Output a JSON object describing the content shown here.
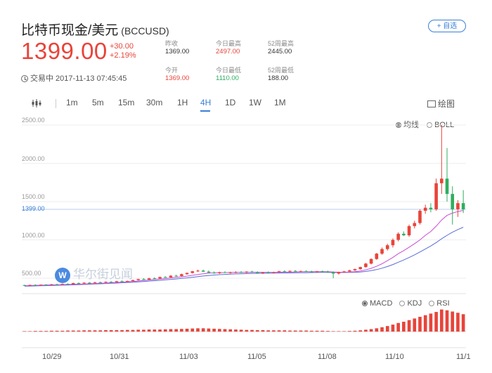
{
  "header": {
    "title": "比特币现金/美元",
    "symbol": "(BCCUSD)",
    "fav_label": "+ 自选",
    "price": "1399.00",
    "change": "+30.00",
    "change_pct": "+2.19%",
    "trade_status": "交易中 2017-11-13 07:45:45"
  },
  "stats": {
    "prev_close_label": "昨收",
    "prev_close": "1369.00",
    "high_label": "今日最高",
    "high": "2497.00",
    "w52_high_label": "52周最高",
    "w52_high": "2445.00",
    "open_label": "今开",
    "open": "1369.00",
    "low_label": "今日最低",
    "low": "1110.00",
    "w52_low_label": "52周最低",
    "w52_low": "188.00"
  },
  "tabs": [
    "1m",
    "5m",
    "15m",
    "30m",
    "1H",
    "4H",
    "1D",
    "1W",
    "1M"
  ],
  "active_tab": "4H",
  "draw_label": "绘图",
  "legend_main": {
    "ma": "均线",
    "boll": "BOLL"
  },
  "legend_sub": {
    "macd": "MACD",
    "kdj": "KDJ",
    "rsi": "RSI"
  },
  "watermark": "华尔街见闻",
  "colors": {
    "up": "#e8443a",
    "down": "#2fae5e",
    "accent": "#3b7fd6",
    "ma1": "#c94bd6",
    "ma2": "#5a6bd8"
  },
  "chart_data": {
    "type": "candlestick",
    "y_ticks": [
      "2500.00",
      "2000.00",
      "1500.00",
      "1000.00",
      "500.00"
    ],
    "last_price_label": "1399.00",
    "x_ticks": [
      "10/29",
      "10/31",
      "11/03",
      "11/05",
      "11/08",
      "11/10",
      "11/1"
    ],
    "ylim": [
      330,
      2700
    ],
    "candles": [
      [
        410,
        415,
        400,
        408
      ],
      [
        408,
        416,
        402,
        412
      ],
      [
        412,
        420,
        405,
        409
      ],
      [
        409,
        418,
        401,
        415
      ],
      [
        415,
        422,
        408,
        413
      ],
      [
        413,
        425,
        409,
        420
      ],
      [
        420,
        428,
        412,
        416
      ],
      [
        416,
        430,
        410,
        425
      ],
      [
        425,
        432,
        418,
        422
      ],
      [
        422,
        440,
        418,
        436
      ],
      [
        436,
        445,
        428,
        432
      ],
      [
        432,
        446,
        425,
        441
      ],
      [
        441,
        450,
        436,
        438
      ],
      [
        438,
        452,
        430,
        447
      ],
      [
        447,
        455,
        440,
        443
      ],
      [
        443,
        458,
        438,
        452
      ],
      [
        452,
        460,
        445,
        448
      ],
      [
        448,
        465,
        442,
        460
      ],
      [
        460,
        470,
        452,
        456
      ],
      [
        456,
        468,
        450,
        463
      ],
      [
        463,
        480,
        458,
        475
      ],
      [
        475,
        492,
        470,
        488
      ],
      [
        488,
        500,
        478,
        482
      ],
      [
        482,
        505,
        476,
        498
      ],
      [
        498,
        512,
        490,
        495
      ],
      [
        495,
        520,
        490,
        515
      ],
      [
        515,
        525,
        505,
        510
      ],
      [
        510,
        540,
        505,
        532
      ],
      [
        532,
        545,
        520,
        528
      ],
      [
        528,
        560,
        522,
        552
      ],
      [
        552,
        575,
        545,
        568
      ],
      [
        568,
        595,
        560,
        590
      ],
      [
        590,
        610,
        580,
        598
      ],
      [
        598,
        612,
        580,
        585
      ],
      [
        585,
        600,
        565,
        572
      ],
      [
        572,
        588,
        558,
        565
      ],
      [
        565,
        585,
        555,
        578
      ],
      [
        578,
        590,
        565,
        570
      ],
      [
        570,
        585,
        560,
        576
      ],
      [
        576,
        590,
        566,
        580
      ],
      [
        580,
        592,
        570,
        574
      ],
      [
        574,
        590,
        566,
        585
      ],
      [
        585,
        596,
        572,
        578
      ],
      [
        578,
        590,
        562,
        566
      ],
      [
        566,
        582,
        555,
        575
      ],
      [
        575,
        588,
        565,
        570
      ],
      [
        570,
        585,
        560,
        578
      ],
      [
        578,
        595,
        572,
        590
      ],
      [
        590,
        602,
        580,
        585
      ],
      [
        585,
        600,
        575,
        595
      ],
      [
        595,
        605,
        582,
        588
      ],
      [
        588,
        600,
        578,
        592
      ],
      [
        592,
        604,
        584,
        587
      ],
      [
        587,
        598,
        576,
        580
      ],
      [
        580,
        595,
        572,
        590
      ],
      [
        590,
        600,
        580,
        585
      ],
      [
        585,
        598,
        570,
        575
      ],
      [
        575,
        590,
        500,
        560
      ],
      [
        560,
        585,
        548,
        580
      ],
      [
        580,
        595,
        570,
        588
      ],
      [
        588,
        610,
        580,
        602
      ],
      [
        602,
        625,
        595,
        618
      ],
      [
        618,
        650,
        610,
        645
      ],
      [
        645,
        700,
        638,
        690
      ],
      [
        690,
        760,
        680,
        750
      ],
      [
        750,
        830,
        740,
        820
      ],
      [
        820,
        900,
        805,
        880
      ],
      [
        880,
        950,
        860,
        930
      ],
      [
        930,
        1020,
        900,
        1000
      ],
      [
        1000,
        1100,
        980,
        1080
      ],
      [
        1080,
        1110,
        1050,
        1060
      ],
      [
        1060,
        1200,
        1040,
        1180
      ],
      [
        1180,
        1250,
        1150,
        1220
      ],
      [
        1220,
        1400,
        1200,
        1380
      ],
      [
        1380,
        1460,
        1340,
        1420
      ],
      [
        1420,
        1480,
        1360,
        1400
      ],
      [
        1400,
        1800,
        1380,
        1740
      ],
      [
        1740,
        2500,
        1600,
        1800
      ],
      [
        1800,
        2200,
        1500,
        1600
      ],
      [
        1600,
        1700,
        1200,
        1400
      ],
      [
        1400,
        1520,
        1300,
        1480
      ],
      [
        1480,
        1650,
        1350,
        1399
      ]
    ],
    "ma_fast": [
      400,
      404,
      406,
      408,
      410,
      412,
      413,
      415,
      417,
      419,
      421,
      424,
      427,
      430,
      433,
      436,
      440,
      444,
      448,
      452,
      457,
      463,
      470,
      476,
      482,
      488,
      495,
      502,
      510,
      518,
      527,
      538,
      549,
      558,
      565,
      570,
      572,
      573,
      574,
      575,
      575,
      576,
      577,
      577,
      577,
      576,
      576,
      577,
      579,
      581,
      582,
      584,
      585,
      585,
      585,
      585,
      584,
      580,
      578,
      578,
      580,
      585,
      594,
      608,
      628,
      655,
      688,
      728,
      772,
      820,
      860,
      905,
      950,
      1000,
      1060,
      1110,
      1180,
      1260,
      1320,
      1350,
      1370,
      1385
    ],
    "ma_slow": [
      395,
      397,
      399,
      401,
      403,
      405,
      407,
      409,
      411,
      413,
      415,
      418,
      421,
      424,
      427,
      430,
      433,
      436,
      440,
      444,
      448,
      452,
      457,
      462,
      467,
      472,
      478,
      484,
      490,
      497,
      504,
      512,
      520,
      528,
      535,
      541,
      546,
      550,
      553,
      556,
      558,
      560,
      562,
      563,
      564,
      565,
      566,
      567,
      568,
      569,
      570,
      571,
      572,
      573,
      574,
      575,
      575,
      574,
      574,
      574,
      575,
      577,
      581,
      588,
      598,
      612,
      630,
      652,
      678,
      708,
      738,
      770,
      805,
      842,
      882,
      920,
      965,
      1015,
      1060,
      1100,
      1135,
      1165
    ],
    "macd_hist": [
      2,
      2,
      3,
      3,
      3,
      4,
      4,
      4,
      5,
      5,
      5,
      6,
      6,
      6,
      6,
      7,
      7,
      7,
      7,
      8,
      8,
      9,
      9,
      10,
      10,
      10,
      11,
      12,
      12,
      13,
      14,
      15,
      16,
      16,
      15,
      14,
      13,
      12,
      11,
      10,
      9,
      8,
      8,
      7,
      7,
      6,
      6,
      6,
      6,
      5,
      5,
      5,
      5,
      4,
      4,
      4,
      3,
      2,
      2,
      2,
      3,
      4,
      6,
      9,
      12,
      16,
      21,
      27,
      34,
      42,
      48,
      56,
      64,
      72,
      80,
      88,
      96,
      108,
      104,
      98,
      92,
      85
    ]
  }
}
